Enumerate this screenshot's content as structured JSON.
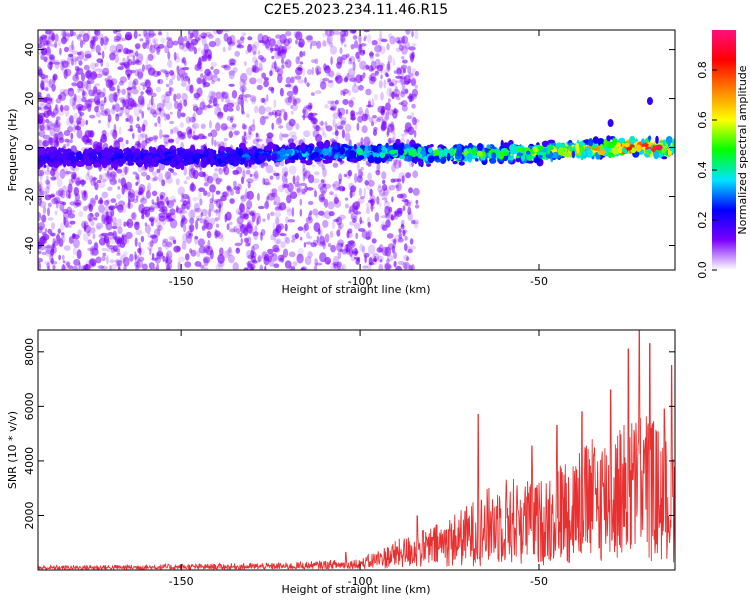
{
  "figure_title": "C2E5.2023.234.11.46.R15",
  "colors": {
    "signal": "#e83030",
    "axis": "#000000",
    "scatter": "#7a00ff"
  },
  "chart_data": [
    {
      "type": "heatmap",
      "xlabel": "Height of straight line (km)",
      "ylabel": "Frequency (Hz)",
      "xlim": [
        -190,
        -12
      ],
      "ylim": [
        -50,
        48
      ],
      "xticks": [
        -150,
        -100,
        -50
      ],
      "xticklabels": [
        "-150",
        "-100",
        "-50"
      ],
      "yticks": [
        -40,
        -20,
        0,
        20,
        40
      ],
      "yticklabels": [
        "-40",
        "-20",
        "0",
        "20",
        "40"
      ],
      "colorbar": {
        "label": "Normalized spectral amplitude",
        "range": [
          0,
          0.96
        ],
        "ticks": [
          0,
          0.2,
          0.4,
          0.6,
          0.8
        ],
        "ticklabels": [
          "0.0",
          "0.2",
          "0.4",
          "0.6",
          "0.8"
        ],
        "colormap": [
          "#ffffff",
          "#7a00ff",
          "#0000ff",
          "#00e5ff",
          "#00ff00",
          "#ffff00",
          "#ff8000",
          "#ff0000",
          "#ff1080"
        ]
      },
      "signal_band": {
        "center_hz": [
          [
            -190,
            -4
          ],
          [
            -140,
            -4
          ],
          [
            -110,
            -2
          ],
          [
            -90,
            -2
          ],
          [
            -80,
            -3
          ],
          [
            -50,
            -2
          ],
          [
            -30,
            0
          ],
          [
            -12,
            0
          ]
        ],
        "peak_amplitude": [
          [
            -190,
            0.1
          ],
          [
            -145,
            0.15
          ],
          [
            -115,
            0.25
          ],
          [
            -100,
            0.3
          ],
          [
            -80,
            0.4
          ],
          [
            -60,
            0.45
          ],
          [
            -45,
            0.55
          ],
          [
            -30,
            0.75
          ],
          [
            -20,
            0.9
          ],
          [
            -12,
            0.7
          ]
        ]
      },
      "noise_extent_km": [
        -190,
        -88
      ],
      "grid": false
    },
    {
      "type": "line",
      "xlabel": "Height of straight line (km)",
      "ylabel": "SNR (10 * v/v)",
      "xlim": [
        -190,
        -12
      ],
      "ylim": [
        0,
        8800
      ],
      "xticks": [
        -150,
        -100,
        -50
      ],
      "xticklabels": [
        "-150",
        "-100",
        "-50"
      ],
      "yticks": [
        2000,
        4000,
        6000,
        8000
      ],
      "yticklabels": [
        "2000",
        "4000",
        "6000",
        "8000"
      ],
      "series": [
        {
          "color": "#e83030",
          "envelope": [
            [
              -190,
              150
            ],
            [
              -150,
              200
            ],
            [
              -120,
              250
            ],
            [
              -100,
              400
            ],
            [
              -90,
              1100
            ],
            [
              -80,
              1600
            ],
            [
              -70,
              2400
            ],
            [
              -60,
              3500
            ],
            [
              -50,
              3300
            ],
            [
              -40,
              4500
            ],
            [
              -30,
              5200
            ],
            [
              -20,
              6000
            ],
            [
              -15,
              5000
            ],
            [
              -12,
              4800
            ]
          ],
          "spikes": [
            [
              -104,
              650
            ],
            [
              -84,
              1980
            ],
            [
              -67,
              5700
            ],
            [
              -52,
              4550
            ],
            [
              -45,
              5300
            ],
            [
              -38,
              5800
            ],
            [
              -30,
              6600
            ],
            [
              -25,
              8100
            ],
            [
              -22,
              8800
            ],
            [
              -19,
              8300
            ],
            [
              -15,
              5900
            ],
            [
              -13,
              7500
            ]
          ]
        }
      ],
      "grid": false
    }
  ]
}
